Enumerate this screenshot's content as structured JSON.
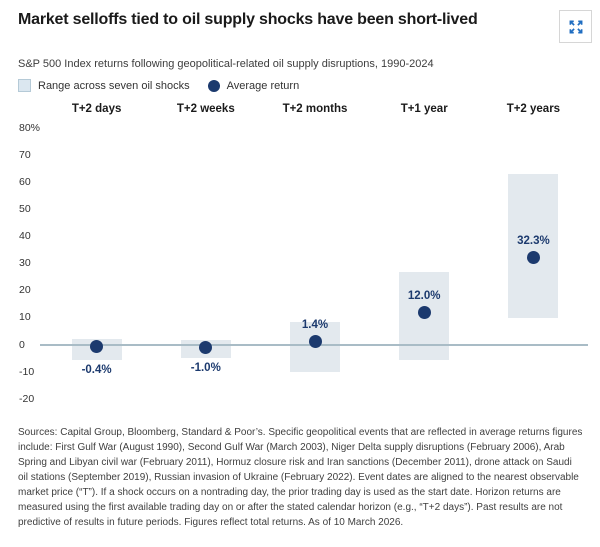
{
  "header": {
    "title": "Market selloffs tied to oil supply shocks have been short-lived",
    "expand_button": "expand"
  },
  "subtitle": "S&P 500 Index returns following geopolitical-related oil supply disruptions, 1990-2024",
  "legend": [
    {
      "swatch": "range-square",
      "label": "Range across seven oil shocks"
    },
    {
      "swatch": "average-dot",
      "label": "Average return"
    }
  ],
  "chart_data": {
    "type": "range-dot",
    "title": "S&P 500 Index returns following geopolitical-related oil supply disruptions, 1990-2024",
    "categories": [
      "T+2 days",
      "T+2 weeks",
      "T+2 months",
      "T+1 year",
      "T+2 years"
    ],
    "series": [
      {
        "name": "Range across seven oil shocks",
        "low": [
          -5.4,
          -4.8,
          -10.0,
          -5.7,
          9.8
        ],
        "high": [
          2.2,
          2.0,
          8.5,
          26.8,
          63.0
        ]
      },
      {
        "name": "Average return",
        "values": [
          -0.4,
          -1.0,
          1.4,
          12.0,
          32.3
        ]
      }
    ],
    "value_labels": [
      "-0.4%",
      "-1.0%",
      "1.4%",
      "12.0%",
      "32.3%"
    ],
    "label_side": [
      "below",
      "below",
      "above",
      "above",
      "above"
    ],
    "y_ticks": [
      "80%",
      "70",
      "60",
      "50",
      "40",
      "30",
      "20",
      "10",
      "0",
      "-10",
      "-20"
    ],
    "y_tick_values": [
      80,
      70,
      60,
      50,
      40,
      30,
      20,
      10,
      0,
      -10,
      -20
    ],
    "ylim": [
      -20,
      80
    ],
    "grid": "none",
    "legend_position": "top-left",
    "colors": {
      "range": "#e3e9ee",
      "dot": "#1c3a6e",
      "zero_line": "#a9bcc6",
      "value_label": "#1c3a6e",
      "expand_icon": "#1f6dc1"
    }
  },
  "footnote": "Sources: Capital Group, Bloomberg, Standard & Poor’s. Specific geopolitical events that are reflected in average returns figures include: First Gulf War (August 1990), Second Gulf War (March 2003), Niger Delta supply disruptions (February 2006), Arab Spring and Libyan civil war (February 2011), Hormuz closure risk and Iran sanctions (December 2011), drone attack on Saudi oil stations (September 2019), Russian invasion of Ukraine (February 2022). Event dates are aligned to the nearest observable market price (“T”). If a shock occurs on a nontrading day, the prior trading day is used as the start date. Horizon returns are measured using the first available trading day on or after the stated calendar horizon (e.g., “T+2 days”). Past results are not predictive of results in future periods. Figures reflect total returns. As of 10 March 2026."
}
